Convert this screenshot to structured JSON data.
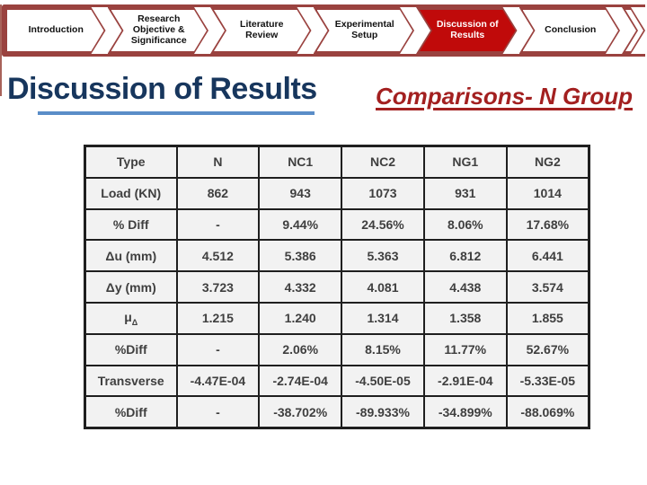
{
  "nav": {
    "items": [
      {
        "label": "Introduction",
        "active": false
      },
      {
        "label": "Research Objective & Significance",
        "active": false
      },
      {
        "label": "Literature Review",
        "active": false
      },
      {
        "label": "Experimental Setup",
        "active": false
      },
      {
        "label": "Discussion of Results",
        "active": true
      },
      {
        "label": "Conclusion",
        "active": false
      }
    ]
  },
  "header": {
    "title": "Discussion of Results",
    "subtitle": "Comparisons- N Group"
  },
  "colors": {
    "nav_outline": "#9a423f",
    "nav_active_fill": "#c00a0a",
    "title": "#17365d",
    "title_underline": "#5b8dc8",
    "subtitle": "#a32020",
    "table_cell_bg": "#f2f2f2",
    "table_border": "#1f1f1f",
    "table_text": "#3f3f3f"
  },
  "table": {
    "headers": [
      "Type",
      "N",
      "NC1",
      "NC2",
      "NG1",
      "NG2"
    ],
    "rows": [
      {
        "label": "Load (KN)",
        "values": [
          "862",
          "943",
          "1073",
          "931",
          "1014"
        ]
      },
      {
        "label": "% Diff",
        "values": [
          "-",
          "9.44%",
          "24.56%",
          "8.06%",
          "17.68%"
        ]
      },
      {
        "label": "Δu (mm)",
        "values": [
          "4.512",
          "5.386",
          "5.363",
          "6.812",
          "6.441"
        ]
      },
      {
        "label": "Δy (mm)",
        "values": [
          "3.723",
          "4.332",
          "4.081",
          "4.438",
          "3.574"
        ]
      },
      {
        "label": "μ",
        "label_sub": "Δ",
        "values": [
          "1.215",
          "1.240",
          "1.314",
          "1.358",
          "1.855"
        ]
      },
      {
        "label": "%Diff",
        "values": [
          "-",
          "2.06%",
          "8.15%",
          "11.77%",
          "52.67%"
        ]
      },
      {
        "label": "Transverse",
        "values": [
          "-4.47E-04",
          "-2.74E-04",
          "-4.50E-05",
          "-2.91E-04",
          "-5.33E-05"
        ]
      },
      {
        "label": "%Diff",
        "values": [
          "-",
          "-38.702%",
          "-89.933%",
          "-34.899%",
          "-88.069%"
        ]
      }
    ]
  }
}
